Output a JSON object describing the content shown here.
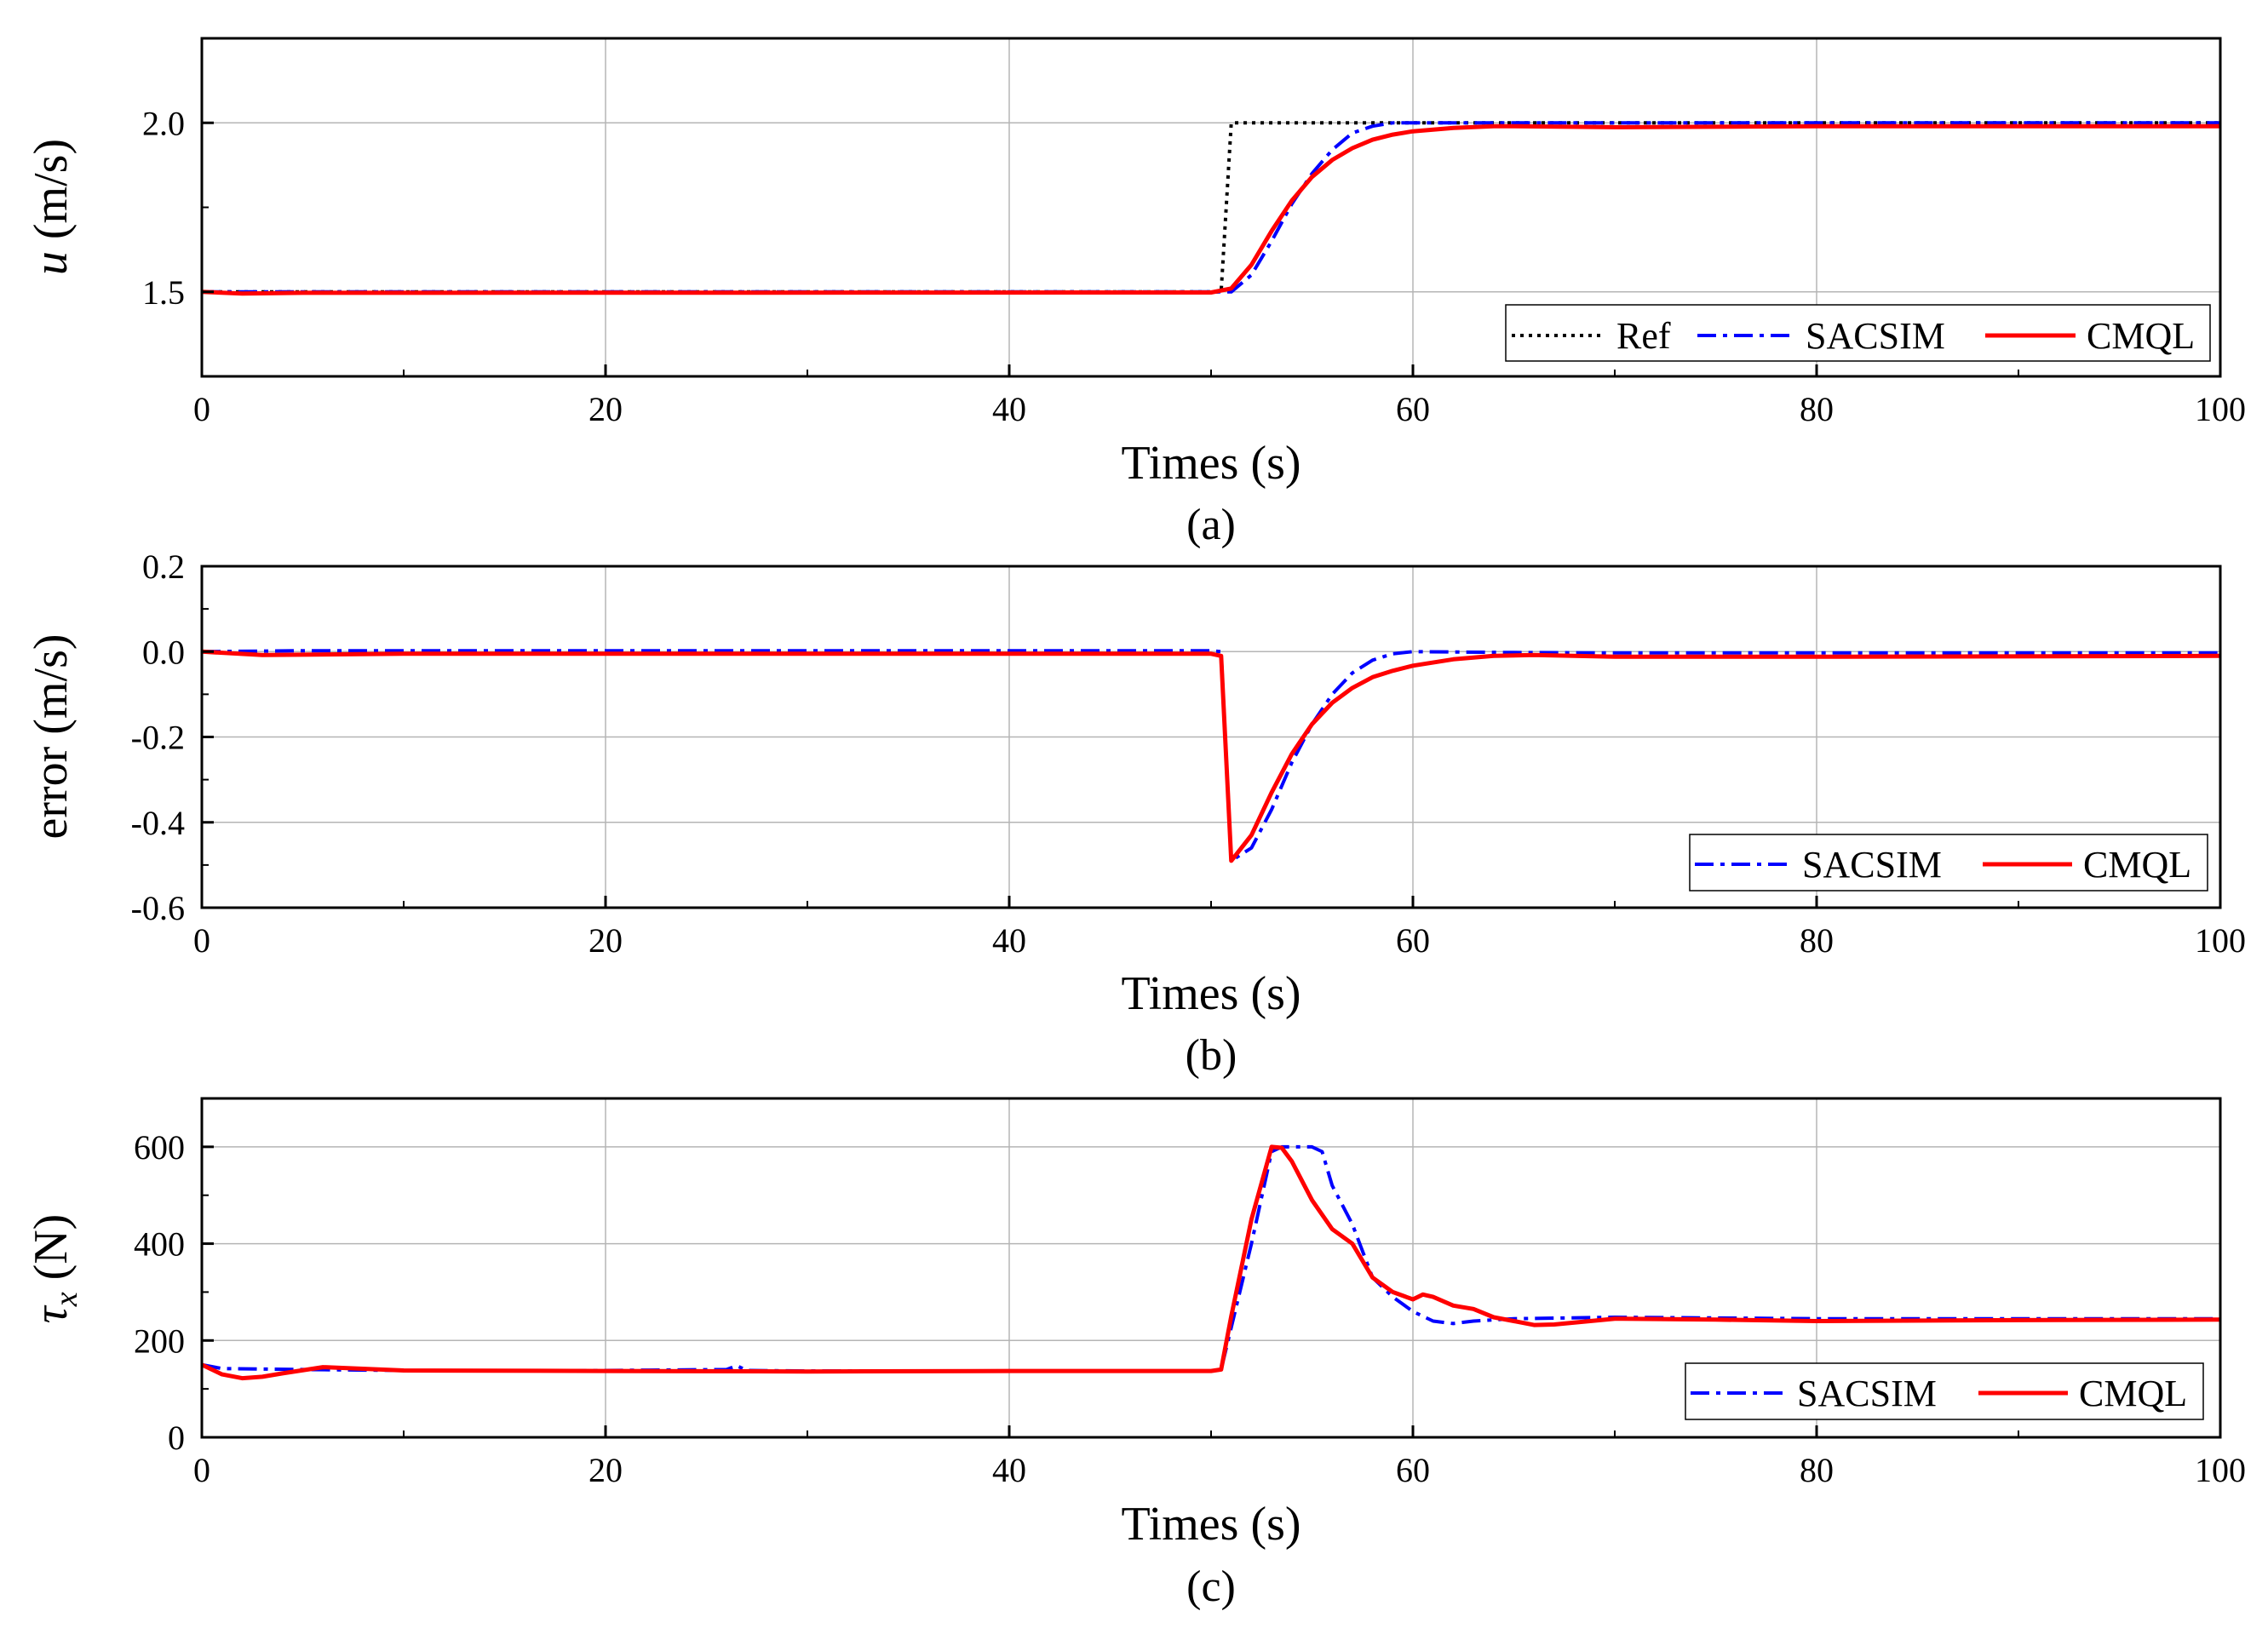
{
  "chart_data": [
    {
      "id": "a",
      "type": "line",
      "caption": "(a)",
      "xlabel": "Times (s)",
      "ylabel": "u (m/s)",
      "ylabel_italic": "u",
      "ylabel_unit": " (m/s)",
      "xlim": [
        0,
        100
      ],
      "ylim": [
        1.25,
        2.25
      ],
      "xticks": [
        0,
        20,
        40,
        60,
        80,
        100
      ],
      "xtick_labels": [
        "0",
        "20",
        "40",
        "60",
        "80",
        "100"
      ],
      "yticks": [
        1.5,
        2.0
      ],
      "ytick_labels": [
        "1.5",
        "2.0"
      ],
      "grid": true,
      "legend": "bottom-right",
      "series": [
        {
          "name": "Ref",
          "color": "#000000",
          "style": "dotted",
          "x": [
            0,
            50.5,
            50.6,
            51,
            100
          ],
          "y": [
            1.5,
            1.5,
            1.6,
            2.0,
            2.0
          ]
        },
        {
          "name": "SACSIM",
          "color": "#0000ff",
          "style": "dashdot",
          "x": [
            0,
            2,
            50,
            51,
            52,
            53,
            54,
            55,
            56,
            57,
            58,
            59,
            60,
            62,
            65,
            70,
            80,
            100
          ],
          "y": [
            1.5,
            1.5,
            1.5,
            1.5,
            1.55,
            1.65,
            1.76,
            1.85,
            1.92,
            1.97,
            1.99,
            2.0,
            2.0,
            2.0,
            2.0,
            2.0,
            2.0,
            2.0
          ]
        },
        {
          "name": "CMQL",
          "color": "#ff0000",
          "style": "solid",
          "x": [
            0,
            2,
            5,
            50,
            51,
            52,
            53,
            54,
            55,
            56,
            57,
            58,
            59,
            60,
            62,
            64,
            65,
            70,
            80,
            100
          ],
          "y": [
            1.5,
            1.495,
            1.497,
            1.498,
            1.51,
            1.58,
            1.68,
            1.77,
            1.84,
            1.89,
            1.925,
            1.95,
            1.965,
            1.975,
            1.985,
            1.99,
            1.99,
            1.987,
            1.99,
            1.99
          ]
        }
      ]
    },
    {
      "id": "b",
      "type": "line",
      "caption": "(b)",
      "xlabel": "Times (s)",
      "ylabel": "error (m/s)",
      "xlim": [
        0,
        100
      ],
      "ylim": [
        -0.6,
        0.2
      ],
      "xticks": [
        0,
        20,
        40,
        60,
        80,
        100
      ],
      "xtick_labels": [
        "0",
        "20",
        "40",
        "60",
        "80",
        "100"
      ],
      "yticks": [
        -0.6,
        -0.4,
        -0.2,
        0.0,
        0.2
      ],
      "ytick_labels": [
        "-0.6",
        "-0.4",
        "-0.2",
        "0.0",
        "0.2"
      ],
      "grid": true,
      "legend": "bottom-right",
      "series": [
        {
          "name": "SACSIM",
          "color": "#0000ff",
          "style": "dashdot",
          "x": [
            0,
            5,
            50,
            50.5,
            51,
            52,
            53,
            54,
            55,
            56,
            57,
            58,
            59,
            60,
            65,
            70,
            80,
            100
          ],
          "y": [
            0,
            0.002,
            0.002,
            0.0,
            -0.49,
            -0.46,
            -0.37,
            -0.26,
            -0.17,
            -0.1,
            -0.05,
            -0.02,
            -0.005,
            0,
            -0.002,
            -0.003,
            -0.003,
            -0.003
          ]
        },
        {
          "name": "CMQL",
          "color": "#ff0000",
          "style": "solid",
          "x": [
            0,
            3,
            10,
            50,
            50.5,
            51,
            52,
            53,
            54,
            55,
            56,
            57,
            58,
            59,
            60,
            62,
            64,
            66,
            70,
            80,
            100
          ],
          "y": [
            0,
            -0.008,
            -0.005,
            -0.005,
            -0.01,
            -0.49,
            -0.43,
            -0.33,
            -0.24,
            -0.17,
            -0.12,
            -0.085,
            -0.06,
            -0.045,
            -0.033,
            -0.018,
            -0.01,
            -0.008,
            -0.012,
            -0.012,
            -0.01
          ]
        }
      ]
    },
    {
      "id": "c",
      "type": "line",
      "caption": "(c)",
      "xlabel": "Times (s)",
      "ylabel": "τx (N)",
      "ylabel_symbol": "τ",
      "ylabel_sub": "x",
      "ylabel_unit": " (N)",
      "xlim": [
        0,
        100
      ],
      "ylim": [
        0,
        700
      ],
      "xticks": [
        0,
        20,
        40,
        60,
        80,
        100
      ],
      "xtick_labels": [
        "0",
        "20",
        "40",
        "60",
        "80",
        "100"
      ],
      "yticks": [
        0,
        200,
        400,
        600
      ],
      "ytick_labels": [
        "0",
        "200",
        "400",
        "600"
      ],
      "grid": true,
      "legend": "bottom-right",
      "series": [
        {
          "name": "SACSIM",
          "color": "#0000ff",
          "style": "dashdot",
          "x": [
            0,
            1,
            5,
            10,
            20,
            26,
            26.5,
            27,
            30,
            40,
            50,
            50.5,
            52,
            53,
            53.5,
            55,
            55.5,
            56,
            57,
            58,
            59,
            60,
            61,
            62,
            63,
            65,
            70,
            80,
            100
          ],
          "y": [
            150,
            142,
            140,
            138,
            138,
            140,
            148,
            138,
            137,
            137,
            137,
            140,
            400,
            590,
            600,
            600,
            590,
            520,
            440,
            330,
            290,
            260,
            240,
            235,
            240,
            245,
            248,
            245,
            245
          ]
        },
        {
          "name": "CMQL",
          "color": "#ff0000",
          "style": "solid",
          "x": [
            0,
            1,
            2,
            3,
            4,
            6,
            10,
            20,
            30,
            40,
            50,
            50.5,
            51,
            52,
            53,
            53.5,
            54,
            55,
            56,
            57,
            58,
            59,
            60,
            60.5,
            61,
            62,
            63,
            64,
            65,
            66,
            67,
            70,
            75,
            80,
            90,
            100
          ],
          "y": [
            150,
            130,
            122,
            125,
            132,
            145,
            138,
            137,
            136,
            137,
            137,
            140,
            250,
            450,
            600,
            598,
            570,
            490,
            430,
            400,
            330,
            300,
            285,
            295,
            290,
            272,
            265,
            248,
            240,
            232,
            233,
            245,
            243,
            240,
            242,
            243
          ]
        }
      ]
    }
  ]
}
